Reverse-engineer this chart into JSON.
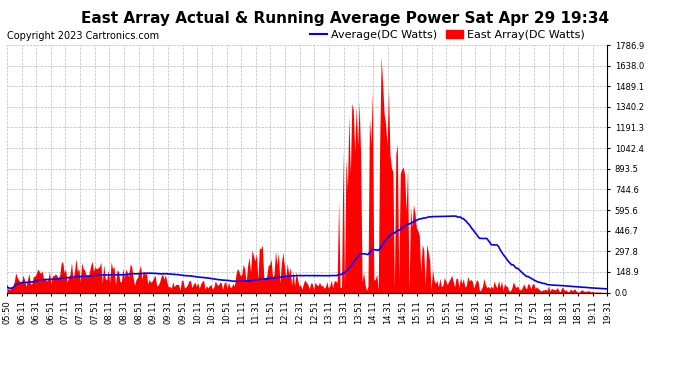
{
  "title": "East Array Actual & Running Average Power Sat Apr 29 19:34",
  "copyright": "Copyright 2023 Cartronics.com",
  "legend_avg": "Average(DC Watts)",
  "legend_east": "East Array(DC Watts)",
  "ymin": 0.0,
  "ymax": 1786.9,
  "yticks": [
    0.0,
    148.9,
    297.8,
    446.7,
    595.6,
    744.6,
    893.5,
    1042.4,
    1191.3,
    1340.2,
    1489.1,
    1638.0,
    1786.9
  ],
  "ytick_labels": [
    "0.0",
    "148.9",
    "297.8",
    "446.7",
    "595.6",
    "744.6",
    "893.5",
    "1042.4",
    "1191.3",
    "1340.2",
    "1489.1",
    "1638.0",
    "1786.9"
  ],
  "xtick_labels": [
    "05:50",
    "06:11",
    "06:31",
    "06:51",
    "07:11",
    "07:31",
    "07:51",
    "08:11",
    "08:31",
    "08:51",
    "09:11",
    "09:31",
    "09:51",
    "10:11",
    "10:31",
    "10:51",
    "11:11",
    "11:31",
    "11:51",
    "12:11",
    "12:31",
    "12:51",
    "13:11",
    "13:31",
    "13:51",
    "14:11",
    "14:31",
    "14:51",
    "15:11",
    "15:31",
    "15:51",
    "16:11",
    "16:31",
    "16:51",
    "17:11",
    "17:31",
    "17:51",
    "18:11",
    "18:31",
    "18:51",
    "19:11",
    "19:31"
  ],
  "bg_color": "#ffffff",
  "grid_color": "#bbbbbb",
  "east_color": "#ff0000",
  "avg_color": "#0000ff",
  "baseline_color": "#000000",
  "title_fontsize": 11,
  "copyright_fontsize": 7,
  "legend_fontsize": 8,
  "tick_fontsize": 6
}
